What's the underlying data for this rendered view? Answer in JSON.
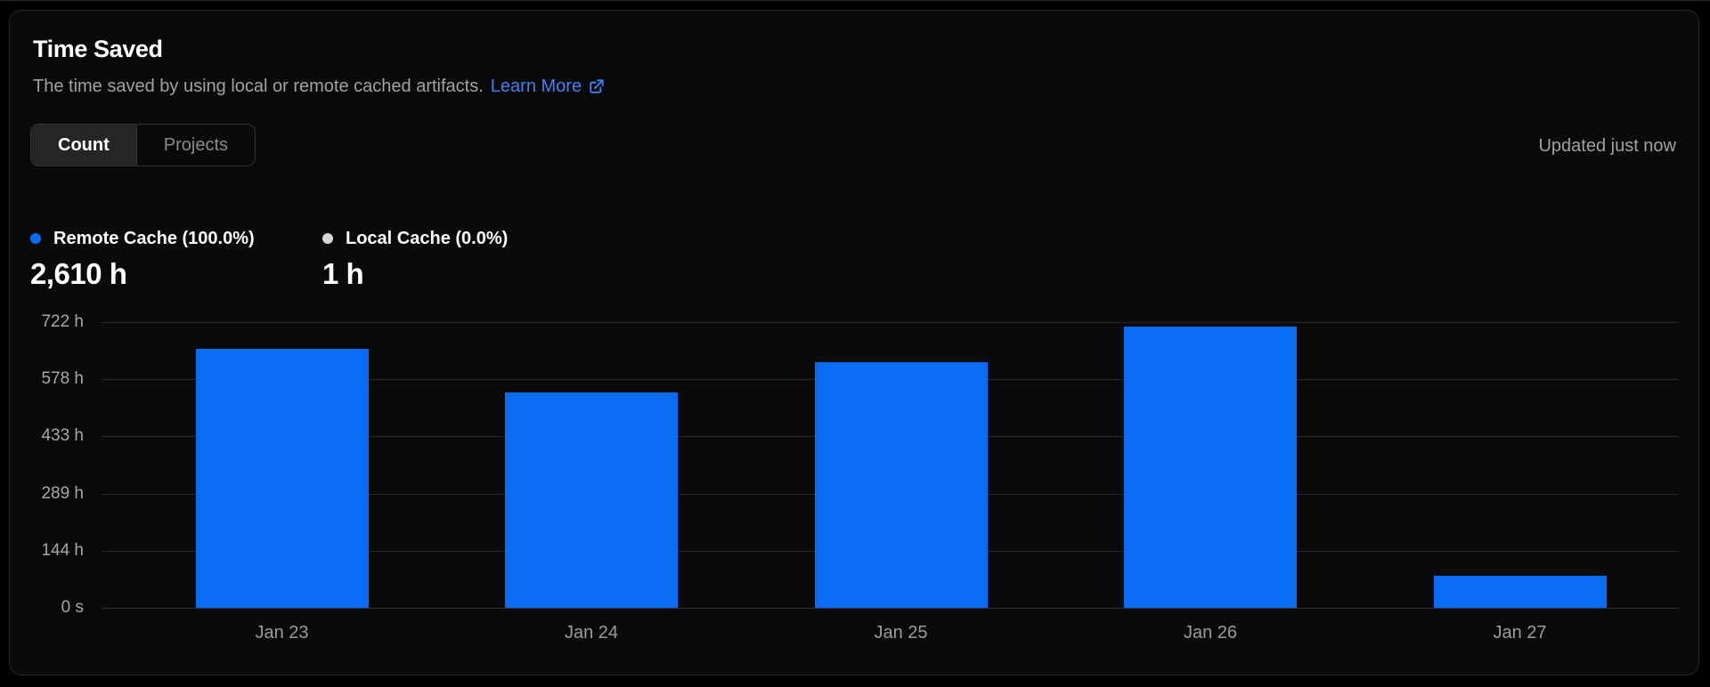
{
  "card": {
    "title": "Time Saved",
    "subtitle": "The time saved by using local or remote cached artifacts.",
    "learn_more": "Learn More",
    "updated": "Updated just now",
    "tabs": [
      {
        "label": "Count",
        "active": true
      },
      {
        "label": "Projects",
        "active": false
      }
    ]
  },
  "legend": [
    {
      "label": "Remote Cache (100.0%)",
      "value": "2,610 h",
      "color": "#0a6cf2"
    },
    {
      "label": "Local Cache (0.0%)",
      "value": "1 h",
      "color": "#d8d8dc"
    }
  ],
  "colors": {
    "bar": "#0a6cf2",
    "link": "#3e82f6",
    "grid": "#29292c",
    "axis_text": "#a6a6ab",
    "card_background": "#0a0a0a"
  },
  "chart_data": {
    "type": "bar",
    "title": "Time Saved",
    "categories": [
      "Jan 23",
      "Jan 24",
      "Jan 25",
      "Jan 26",
      "Jan 27"
    ],
    "series": [
      {
        "name": "Remote Cache",
        "values": [
          655,
          545,
          620,
          710,
          80
        ]
      }
    ],
    "unit": "hours",
    "ylim": [
      0,
      722
    ],
    "yticks": [
      {
        "value": 722,
        "label": "722 h"
      },
      {
        "value": 578,
        "label": "578 h"
      },
      {
        "value": 433,
        "label": "433 h"
      },
      {
        "value": 289,
        "label": "289 h"
      },
      {
        "value": 144,
        "label": "144 h"
      },
      {
        "value": 0,
        "label": "0 s"
      }
    ],
    "grid": true,
    "legend_position": "top-left",
    "totals": {
      "remote_cache": "2,610 h",
      "local_cache": "1 h"
    }
  }
}
